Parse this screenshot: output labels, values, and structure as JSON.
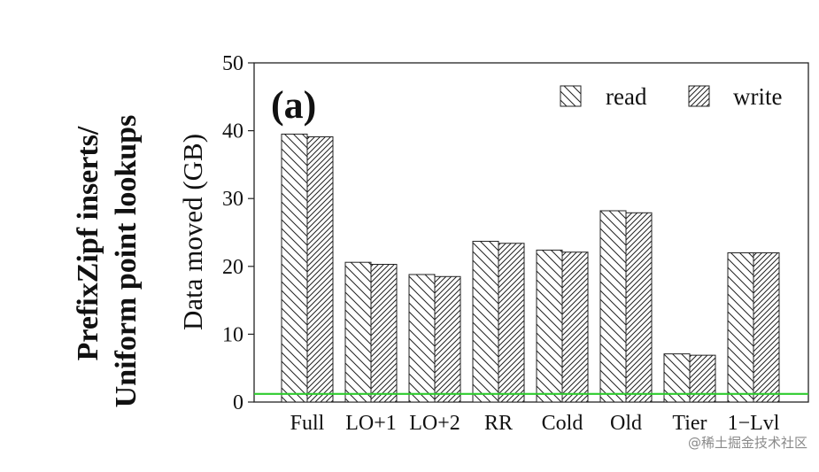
{
  "row_title": {
    "line1": "PrefixZipf inserts/",
    "line2": "Uniform point lookups"
  },
  "panel_label": "(a)",
  "watermark": "@稀土掘金技术社区",
  "reference_line": {
    "value": 1.2,
    "color": "#2ecc2e"
  },
  "chart_data": {
    "type": "bar",
    "title": "",
    "xlabel": "",
    "ylabel": "Data moved (GB)",
    "ylim": [
      0,
      50
    ],
    "yticks": [
      0,
      10,
      20,
      30,
      40,
      50
    ],
    "categories": [
      "Full",
      "LO+1",
      "LO+2",
      "RR",
      "Cold",
      "Old",
      "Tier",
      "1−Lvl"
    ],
    "series": [
      {
        "name": "read",
        "pattern": "hatch-backslash",
        "values": [
          39.5,
          20.6,
          18.8,
          23.7,
          22.4,
          28.2,
          7.1,
          22.0
        ]
      },
      {
        "name": "write",
        "pattern": "hatch-slash-dense",
        "values": [
          39.1,
          20.3,
          18.5,
          23.4,
          22.1,
          27.9,
          6.9,
          22.0
        ]
      }
    ],
    "legend_position": "top-right",
    "grid": false
  }
}
